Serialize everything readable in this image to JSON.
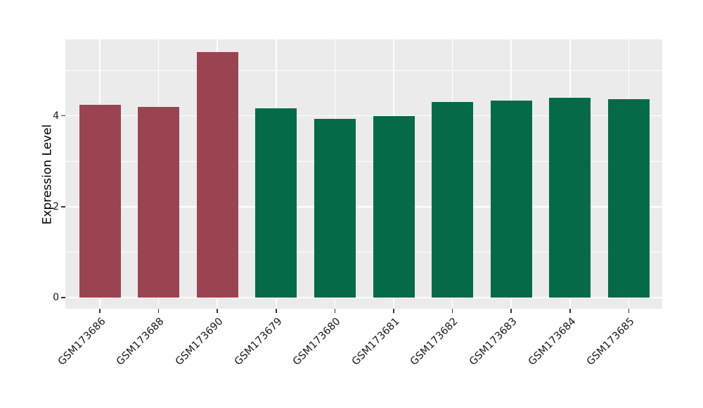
{
  "chart_data": {
    "type": "bar",
    "title": "",
    "xlabel": "",
    "ylabel": "Expression Level",
    "categories": [
      "GSM173686",
      "GSM173688",
      "GSM173690",
      "GSM173679",
      "GSM173680",
      "GSM173681",
      "GSM173682",
      "GSM173683",
      "GSM173684",
      "GSM173685"
    ],
    "values": [
      4.24,
      4.19,
      5.41,
      4.17,
      3.93,
      4.0,
      4.3,
      4.33,
      4.4,
      4.37
    ],
    "bar_colors": [
      "#9B4451",
      "#9B4451",
      "#9B4451",
      "#046A47",
      "#046A47",
      "#046A47",
      "#046A47",
      "#046A47",
      "#046A47",
      "#046A47"
    ],
    "group_colors": {
      "red_group": "#9B4451",
      "green_group": "#046A47"
    },
    "ytick_labels": [
      "0",
      "2",
      "4"
    ],
    "yticks": [
      0,
      2,
      4
    ],
    "grid_major_y": [
      0,
      2,
      4
    ],
    "grid_minor_y": [
      1,
      3,
      5
    ],
    "ylim": [
      -0.27,
      5.68
    ],
    "x_tick_rotation_deg": 45,
    "legend": "none",
    "plot_background": "#EBEBEB",
    "grid_color": "#FFFFFF",
    "tick_mark_color": "#333333",
    "text_color": "#1a1a1a"
  }
}
